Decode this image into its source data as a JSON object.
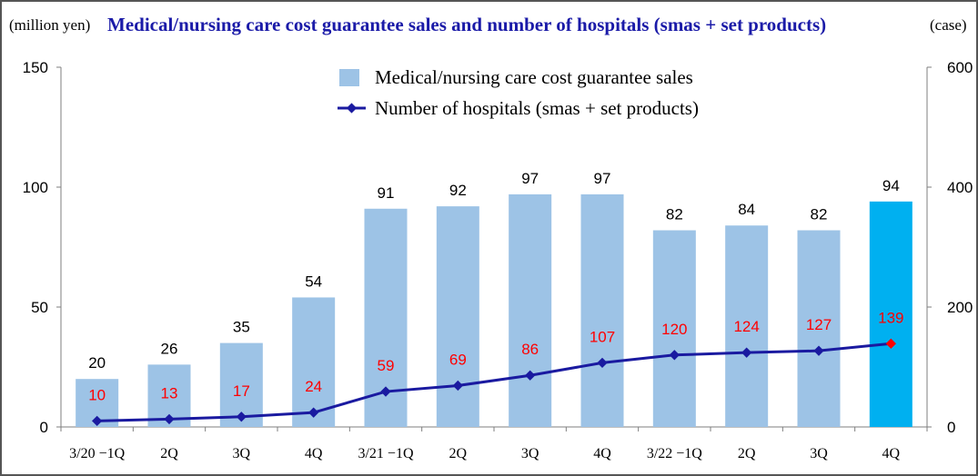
{
  "chart_data": {
    "type": "bar",
    "title": "Medical/nursing care cost guarantee sales and number of hospitals (smas + set products)",
    "ylabel_left": "(million yen)",
    "ylabel_right": "(case)",
    "categories": [
      "3/20 −1Q",
      "2Q",
      "3Q",
      "4Q",
      "3/21 −1Q",
      "2Q",
      "3Q",
      "4Q",
      "3/22 −1Q",
      "2Q",
      "3Q",
      "4Q"
    ],
    "ylim_left": [
      0,
      150
    ],
    "ylim_right": [
      0,
      600
    ],
    "yticks_left": [
      "0",
      "50",
      "100",
      "150"
    ],
    "yticks_right": [
      "0",
      "200",
      "400",
      "600"
    ],
    "grid": false,
    "legend_position": "top-center",
    "series": [
      {
        "name": "Medical/nursing care cost guarantee sales",
        "kind": "bar",
        "axis": "left",
        "values": [
          20,
          26,
          35,
          54,
          91,
          92,
          97,
          97,
          82,
          84,
          82,
          94
        ],
        "color": "#9dc3e6",
        "highlight_color": "#00b0f0",
        "highlight_index": 11
      },
      {
        "name": "Number of hospitals (smas + set products)",
        "kind": "line",
        "axis": "right",
        "values": [
          10,
          13,
          17,
          24,
          59,
          69,
          86,
          107,
          120,
          124,
          127,
          139
        ],
        "color": "#1a1aa0",
        "label_color": "#ff0000",
        "highlight_marker_color": "#ff0000",
        "highlight_index": 11
      }
    ]
  }
}
